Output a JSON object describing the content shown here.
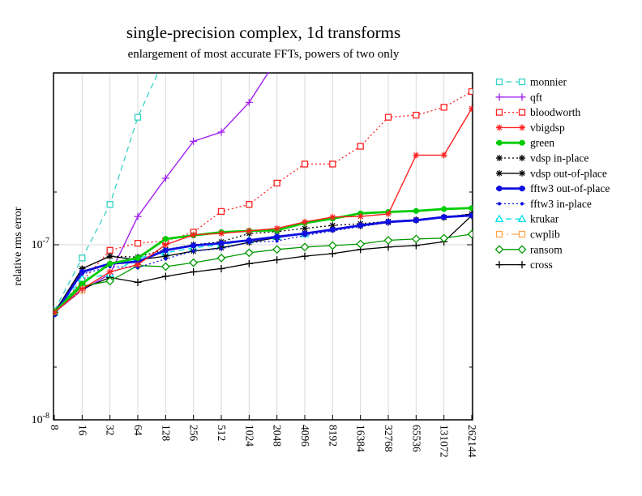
{
  "chart_data": {
    "type": "line",
    "title": "single-precision complex, 1d transforms",
    "subtitle": "enlargement of most accurate FFTs, powers of two only",
    "ylabel": "relative rms error",
    "x_scale": "log2",
    "y_scale": "log10",
    "grid": true,
    "legend_position": "right",
    "ylim": [
      1e-08,
      9.6e-07
    ],
    "x_categories": [
      8,
      16,
      32,
      64,
      128,
      256,
      512,
      1024,
      2048,
      4096,
      8192,
      16384,
      32768,
      65536,
      131072,
      262144
    ],
    "x_tick_labels": [
      "8",
      "16",
      "32",
      "64",
      "128",
      "256",
      "512",
      "1024",
      "2048",
      "4096",
      "8192",
      "16384",
      "32768",
      "65536",
      "131072",
      "262144"
    ],
    "y_ticks": [
      {
        "base": "10",
        "exp": "-7",
        "value": 1e-07
      },
      {
        "base": "10",
        "exp": "-8",
        "value": 1e-08
      }
    ],
    "y_minor_ticks": [
      2e-08,
      2e-07
    ],
    "draw_order": [
      "monnier",
      "qft",
      "bloodworth",
      "cwplib",
      "krukar",
      "cross",
      "ransom",
      "vdsp-in-place",
      "vdsp-out-of-place",
      "fftw3-in-place",
      "fftw3-out-of-place",
      "green",
      "vbigdsp"
    ],
    "series": [
      {
        "name": "monnier",
        "label": "monnier",
        "color": "#35d2c5",
        "dash": "dashed",
        "marker": "square-open",
        "width": 1.3,
        "values": [
          4.2e-08,
          8.4e-08,
          1.7e-07,
          5.35e-07,
          1.2e-06,
          null,
          null,
          null,
          null,
          null,
          null,
          null,
          null,
          null,
          null,
          null
        ]
      },
      {
        "name": "qft",
        "label": "qft",
        "color": "#a020f0",
        "dash": "solid",
        "marker": "plus",
        "width": 1.4,
        "values": [
          4.1e-08,
          5.5e-08,
          6.8e-08,
          1.45e-07,
          2.4e-07,
          3.9e-07,
          4.4e-07,
          6.5e-07,
          1.15e-06,
          null,
          null,
          null,
          null,
          null,
          null,
          null
        ]
      },
      {
        "name": "bloodworth",
        "label": "bloodworth",
        "color": "#ff2020",
        "dash": "dotted",
        "marker": "square-open",
        "width": 1.3,
        "values": [
          4.1e-08,
          6.2e-08,
          9.3e-08,
          1.02e-07,
          1.05e-07,
          1.18e-07,
          1.55e-07,
          1.7e-07,
          2.25e-07,
          2.89e-07,
          2.89e-07,
          3.65e-07,
          5.35e-07,
          5.5e-07,
          6.1e-07,
          7.5e-07
        ]
      },
      {
        "name": "vbigdsp",
        "label": "vbigdsp",
        "color": "#ff2020",
        "dash": "solid",
        "marker": "asterisk",
        "width": 1.4,
        "values": [
          4.1e-08,
          5.6e-08,
          7e-08,
          7.7e-08,
          1e-07,
          1.14e-07,
          1.16e-07,
          1.2e-07,
          1.24e-07,
          1.35e-07,
          1.44e-07,
          1.45e-07,
          1.5e-07,
          3.25e-07,
          3.25e-07,
          6e-07
        ]
      },
      {
        "name": "green",
        "label": "green",
        "color": "#00cc00",
        "dash": "solid",
        "marker": "circle",
        "width": 2.8,
        "values": [
          4.1e-08,
          6e-08,
          7.8e-08,
          8.4e-08,
          1.08e-07,
          1.13e-07,
          1.18e-07,
          1.2e-07,
          1.21e-07,
          1.33e-07,
          1.41e-07,
          1.51e-07,
          1.54e-07,
          1.56e-07,
          1.6e-07,
          1.62e-07
        ]
      },
      {
        "name": "vdsp-in-place",
        "label": "vdsp in-place",
        "color": "#000000",
        "dash": "dotted",
        "marker": "asterisk",
        "width": 1.3,
        "values": [
          4.1e-08,
          7.3e-08,
          8.6e-08,
          8.5e-08,
          9.4e-08,
          1e-07,
          1.04e-07,
          1.16e-07,
          1.19e-07,
          1.24e-07,
          1.29e-07,
          1.32e-07,
          1.36e-07,
          1.39e-07,
          1.44e-07,
          1.5e-07
        ]
      },
      {
        "name": "vdsp-out-of-place",
        "label": "vdsp out-of-place",
        "color": "#000000",
        "dash": "solid",
        "marker": "asterisk",
        "width": 1.3,
        "values": [
          4.1e-08,
          7.3e-08,
          8.6e-08,
          8.2e-08,
          8.6e-08,
          9.2e-08,
          9.6e-08,
          1.03e-07,
          1.1e-07,
          1.16e-07,
          1.22e-07,
          1.28e-07,
          1.34e-07,
          1.38e-07,
          1.43e-07,
          1.5e-07
        ]
      },
      {
        "name": "fftw3-out-of-place",
        "label": "fftw3 out-of-place",
        "color": "#0f0fe0",
        "dash": "solid",
        "marker": "circle",
        "width": 2.8,
        "values": [
          4e-08,
          7e-08,
          7.8e-08,
          8e-08,
          9.3e-08,
          9.9e-08,
          1.02e-07,
          1.06e-07,
          1.11e-07,
          1.16e-07,
          1.22e-07,
          1.29e-07,
          1.35e-07,
          1.38e-07,
          1.44e-07,
          1.47e-07
        ]
      },
      {
        "name": "fftw3-in-place",
        "label": "fftw3 in-place",
        "color": "#0f0fe0",
        "dash": "dotted",
        "marker": "dot",
        "width": 1.3,
        "values": [
          4e-08,
          6.8e-08,
          7.5e-08,
          7.4e-08,
          8.3e-08,
          9.2e-08,
          9.5e-08,
          1.03e-07,
          1.05e-07,
          1.13e-07,
          1.2e-07,
          1.27e-07,
          1.34e-07,
          1.37e-07,
          1.43e-07,
          1.47e-07
        ]
      },
      {
        "name": "krukar",
        "label": "krukar",
        "color": "#00e0ea",
        "dash": "dashed",
        "marker": "triangle-open",
        "width": 1.3,
        "values": [
          4.1e-08,
          6.4e-08,
          6.8e-08,
          8.4e-08,
          9e-08,
          9.6e-08,
          1e-07,
          1.06e-07,
          1.11e-07,
          1.15e-07,
          null,
          null,
          null,
          null,
          null,
          null
        ]
      },
      {
        "name": "cwplib",
        "label": "cwplib",
        "color": "#ffa64d",
        "dash": "dashdot",
        "marker": "square-open",
        "width": 1.3,
        "values": [
          4.15e-08,
          5.5e-08,
          null,
          null,
          null,
          null,
          null,
          null,
          null,
          null,
          null,
          null,
          null,
          null,
          null,
          null
        ]
      },
      {
        "name": "ransom",
        "label": "ransom",
        "color": "#009900",
        "dash": "solid",
        "marker": "diamond-open",
        "width": 1.3,
        "values": [
          4.1e-08,
          5.8e-08,
          6.2e-08,
          7.6e-08,
          7.5e-08,
          7.9e-08,
          8.4e-08,
          9e-08,
          9.4e-08,
          9.7e-08,
          9.9e-08,
          1.01e-07,
          1.06e-07,
          1.08e-07,
          1.09e-07,
          1.15e-07
        ]
      },
      {
        "name": "cross",
        "label": "cross",
        "color": "#000000",
        "dash": "solid",
        "marker": "plus",
        "width": 1.3,
        "values": [
          4.1e-08,
          5.6e-08,
          6.5e-08,
          6.1e-08,
          6.6e-08,
          7e-08,
          7.3e-08,
          7.8e-08,
          8.2e-08,
          8.6e-08,
          8.9e-08,
          9.4e-08,
          9.7e-08,
          9.9e-08,
          1.04e-07,
          1.47e-07
        ]
      }
    ]
  }
}
